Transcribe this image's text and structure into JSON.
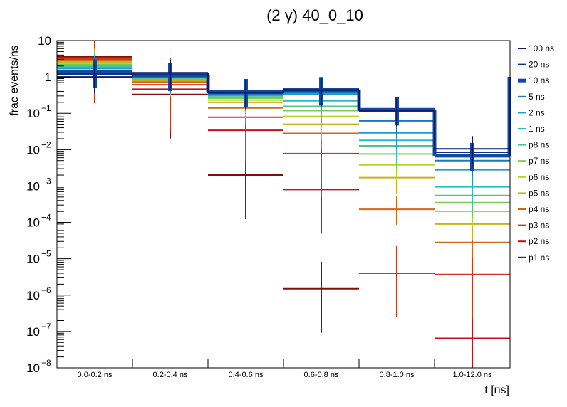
{
  "chart_data": {
    "type": "line",
    "subtype": "step-histogram-with-errorbars",
    "title": "(2 γ) 40_0_10",
    "xlabel": "t [ns]",
    "ylabel": "frac events/ns",
    "yscale": "log",
    "ylim": [
      1e-08,
      10
    ],
    "y_ticks": [
      {
        "base": "10",
        "exp": ""
      },
      {
        "base": "1",
        "exp": ""
      },
      {
        "base": "10",
        "exp": "−1"
      },
      {
        "base": "10",
        "exp": "−2"
      },
      {
        "base": "10",
        "exp": "−3"
      },
      {
        "base": "10",
        "exp": "−4"
      },
      {
        "base": "10",
        "exp": "−5"
      },
      {
        "base": "10",
        "exp": "−6"
      },
      {
        "base": "10",
        "exp": "−7"
      },
      {
        "base": "10",
        "exp": "−8"
      }
    ],
    "categories": [
      "0.0-0.2 ns",
      "0.2-0.4 ns",
      "0.4-0.6 ns",
      "0.6-0.8 ns",
      "0.8-1.0 ns",
      "1.0-12.0 ns"
    ],
    "grid": false,
    "legend_position": "right",
    "series": [
      {
        "name": "100 ns",
        "color": "#0b1a6e",
        "values": [
          1.0,
          1.3,
          0.37,
          0.44,
          0.12,
          0.0105
        ]
      },
      {
        "name": "20 ns",
        "color": "#12307f",
        "values": [
          1.2,
          1.2,
          0.36,
          0.42,
          0.115,
          0.0085
        ]
      },
      {
        "name": "10 ns",
        "color": "#0d4aa0",
        "values": [
          1.35,
          1.1,
          0.39,
          0.44,
          0.125,
          0.0068
        ],
        "bold": true
      },
      {
        "name": "5 ns",
        "color": "#1a78b8",
        "values": [
          1.5,
          1.05,
          0.34,
          0.39,
          0.062,
          0.005
        ]
      },
      {
        "name": "2 ns",
        "color": "#1c9ccc",
        "values": [
          1.7,
          1.0,
          0.32,
          0.34,
          0.029,
          0.0028
        ]
      },
      {
        "name": "1 ns",
        "color": "#27bcc9",
        "values": [
          1.85,
          0.96,
          0.31,
          0.22,
          0.018,
          0.00095
        ]
      },
      {
        "name": "p8 ns",
        "color": "#4cc48e",
        "values": [
          2.0,
          0.92,
          0.3,
          0.155,
          0.0127,
          0.00055
        ]
      },
      {
        "name": "p7 ns",
        "color": "#78cc4c",
        "values": [
          2.2,
          0.88,
          0.26,
          0.118,
          0.0076,
          0.00035
        ]
      },
      {
        "name": "p6 ns",
        "color": "#b0d62a",
        "values": [
          2.4,
          0.84,
          0.23,
          0.082,
          0.0038,
          0.0002
        ]
      },
      {
        "name": "p5 ns",
        "color": "#c8b018",
        "values": [
          2.6,
          0.8,
          0.2,
          0.05,
          0.0017,
          9e-05
        ]
      },
      {
        "name": "p4 ns",
        "color": "#d06818",
        "values": [
          2.8,
          0.73,
          0.14,
          0.028,
          0.00023,
          2.8e-05
        ]
      },
      {
        "name": "p3 ns",
        "color": "#cc3818",
        "values": [
          3.1,
          0.61,
          0.078,
          0.0078,
          4e-06,
          3.7e-06
        ]
      },
      {
        "name": "p2 ns",
        "color": "#be1414",
        "values": [
          3.4,
          0.46,
          0.034,
          0.0008,
          null,
          6.5e-08
        ]
      },
      {
        "name": "p1 ns",
        "color": "#820e0e",
        "values": [
          3.6,
          0.33,
          0.002,
          1.5e-06,
          null,
          null
        ]
      }
    ],
    "error_bars_note": "Each bin carries a vertical error bar centered on the bin; large bars span several decades for the p1-p3 series."
  }
}
